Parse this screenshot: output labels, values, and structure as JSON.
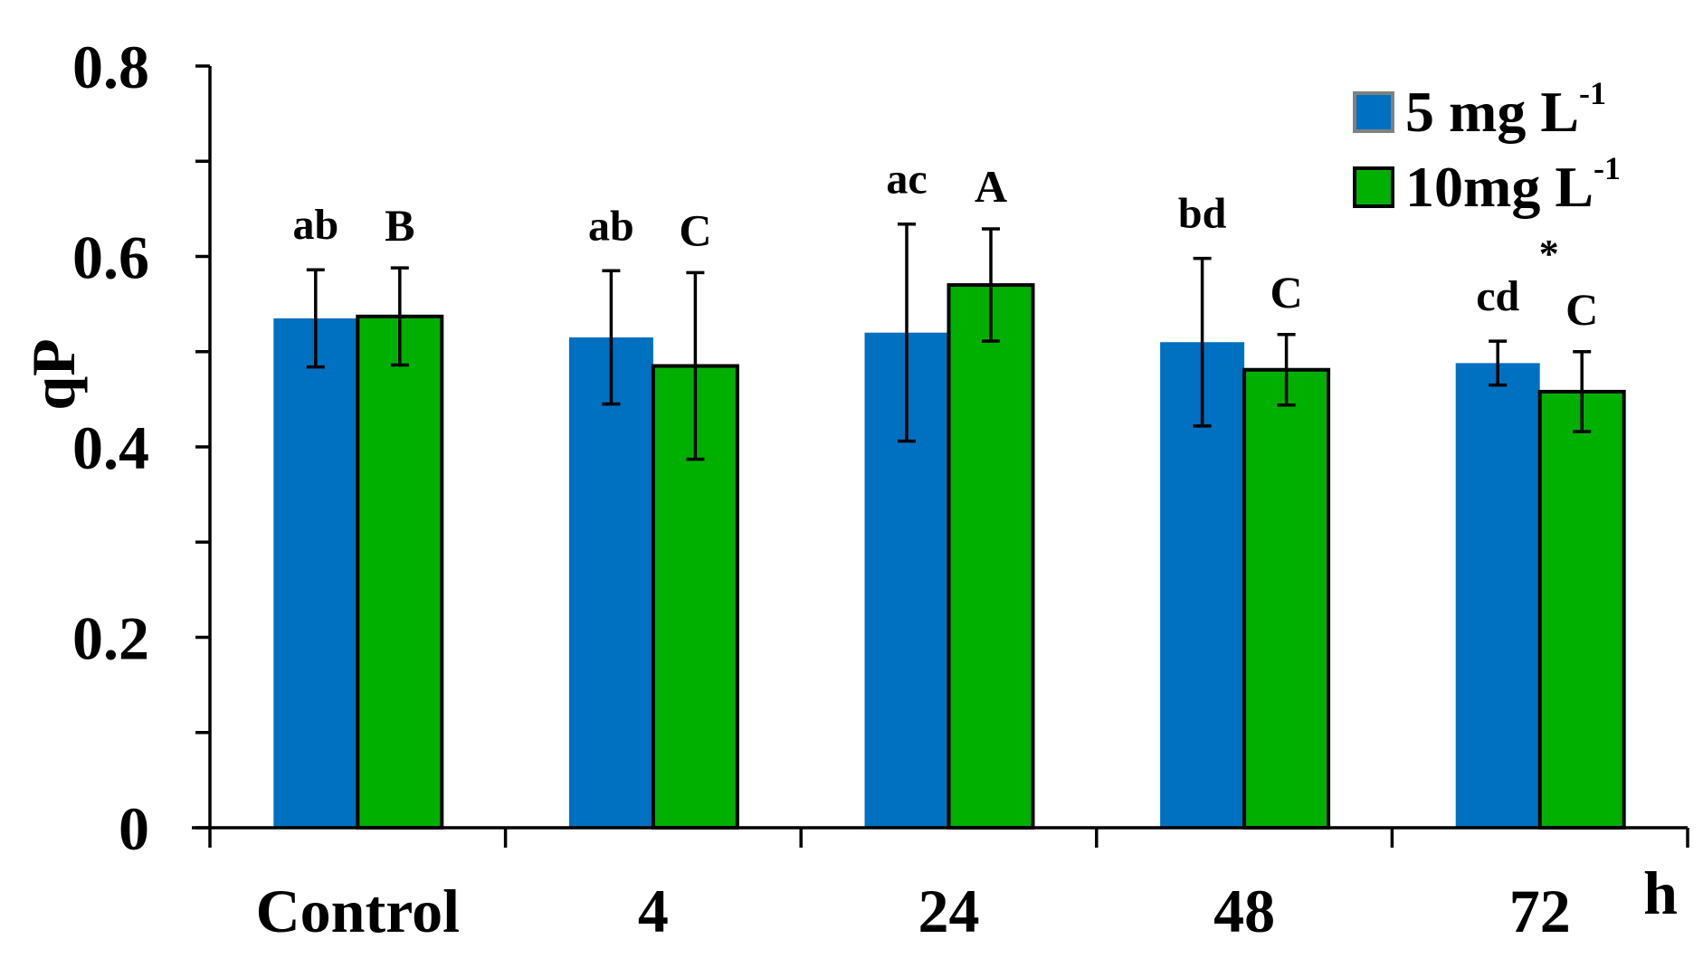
{
  "chart_data": {
    "type": "bar",
    "title": "",
    "xlabel": "h",
    "ylabel": "qP",
    "ylim": [
      0,
      0.8
    ],
    "yticks": [
      "0",
      "0.2",
      "0.4",
      "0.6",
      "0.8"
    ],
    "categories": [
      "Control",
      "4",
      "24",
      "48",
      "72"
    ],
    "series": [
      {
        "name": "5 mg L-1",
        "legend_main": "5 mg L",
        "legend_sup": "-1",
        "color": "#0070C0",
        "values": [
          0.535,
          0.515,
          0.52,
          0.51,
          0.488
        ],
        "errors": [
          0.051,
          0.07,
          0.114,
          0.088,
          0.023
        ],
        "sig": [
          "ab",
          "ab",
          "ac",
          "bd",
          "cd"
        ]
      },
      {
        "name": "10mg L-1",
        "legend_main": "10mg L",
        "legend_sup": "-1",
        "color": "#00B000",
        "values": [
          0.537,
          0.485,
          0.57,
          0.481,
          0.458
        ],
        "errors": [
          0.051,
          0.098,
          0.059,
          0.037,
          0.042
        ],
        "sig": [
          "B",
          "C",
          "A",
          "C",
          "C"
        ]
      }
    ],
    "annotations": [
      {
        "text": "*",
        "category": "72"
      }
    ]
  }
}
